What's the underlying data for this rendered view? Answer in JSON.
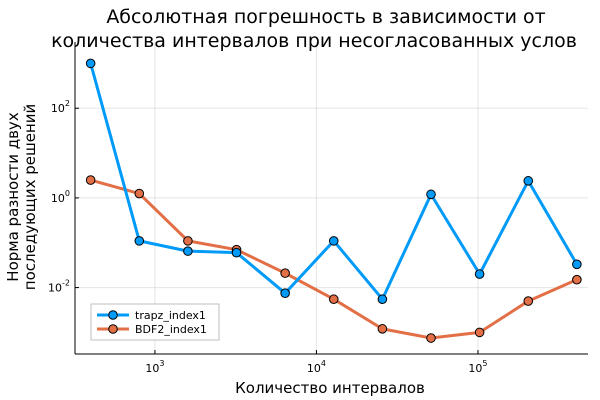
{
  "chart_data": {
    "type": "line",
    "title": [
      "Абсолютная погрешность в зависимости от",
      "количества интервалов при несогласованных услов"
    ],
    "xlabel": "Количество интервалов",
    "ylabel": [
      "Норма разности двух",
      "последующих решений"
    ],
    "x_scale": "log10",
    "y_scale": "log10",
    "xlim": [
      320,
      480000
    ],
    "ylim": [
      0.00033,
      3000
    ],
    "xticks": [
      {
        "base": "10",
        "exp": "3",
        "value": 1000
      },
      {
        "base": "10",
        "exp": "4",
        "value": 10000
      },
      {
        "base": "10",
        "exp": "5",
        "value": 100000
      }
    ],
    "yticks": [
      {
        "base": "10",
        "exp": "-2",
        "value": 0.01
      },
      {
        "base": "10",
        "exp": "0",
        "value": 1
      },
      {
        "base": "10",
        "exp": "2",
        "value": 100
      }
    ],
    "grid": true,
    "legend_position": "bottom-left",
    "x": [
      400,
      800,
      1600,
      3200,
      6400,
      12800,
      25600,
      51200,
      102400,
      204800,
      409600
    ],
    "series": [
      {
        "name": "trapz_index1",
        "color": "#009af9",
        "values": [
          1000,
          0.11,
          0.065,
          0.06,
          0.0075,
          0.11,
          0.0055,
          1.2,
          0.02,
          2.4,
          0.033
        ]
      },
      {
        "name": "BDF2_index1",
        "color": "#e26f46",
        "values": [
          2.5,
          1.25,
          0.11,
          0.07,
          0.021,
          0.0055,
          0.0012,
          0.00075,
          0.001,
          0.005,
          0.015
        ]
      }
    ]
  }
}
